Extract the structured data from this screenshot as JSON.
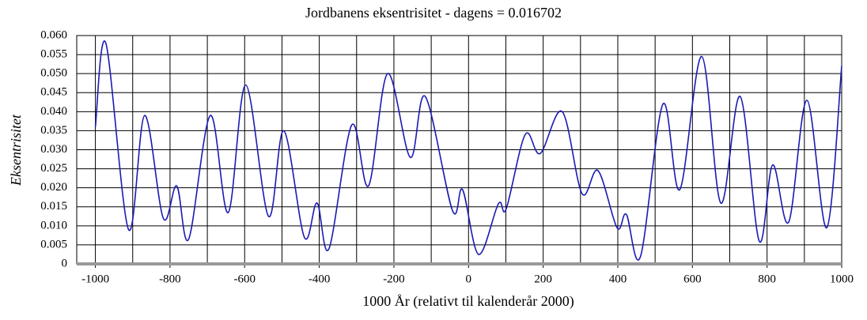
{
  "chart_data": {
    "type": "line",
    "title": "Jordbanens eksentrisitet - dagens = 0.016702",
    "xlabel": "1000 År (relativt til kalenderår 2000)",
    "ylabel": "Eksentrisitet",
    "x": [
      -1000,
      -972,
      -911,
      -868,
      -818,
      -782,
      -750,
      -692,
      -644,
      -597,
      -536,
      -495,
      -440,
      -406,
      -374,
      -313,
      -268,
      -217,
      -156,
      -116,
      -43,
      -16,
      27,
      80,
      101,
      152,
      192,
      251,
      304,
      347,
      398,
      423,
      461,
      521,
      566,
      625,
      676,
      728,
      779,
      815,
      858,
      907,
      960,
      1000
    ],
    "series": [
      {
        "name": "Eksentrisitet",
        "color": "#1a1ab4",
        "values": [
          0.036,
          0.058,
          0.009,
          0.039,
          0.012,
          0.0205,
          0.0065,
          0.039,
          0.0135,
          0.047,
          0.0125,
          0.035,
          0.007,
          0.016,
          0.004,
          0.0365,
          0.0205,
          0.05,
          0.028,
          0.044,
          0.014,
          0.0195,
          0.0025,
          0.0158,
          0.0145,
          0.034,
          0.029,
          0.04,
          0.0185,
          0.0245,
          0.0095,
          0.013,
          0.002,
          0.042,
          0.0195,
          0.0545,
          0.016,
          0.044,
          0.006,
          0.026,
          0.011,
          0.043,
          0.0095,
          0.052
        ]
      }
    ],
    "xlim": [
      -1050,
      1000
    ],
    "ylim": [
      0,
      0.06
    ],
    "xticks": [
      -1000,
      -800,
      -600,
      -400,
      -200,
      0,
      200,
      400,
      600,
      800,
      1000
    ],
    "xgrid": [
      -900,
      -700,
      -500,
      -300,
      -100,
      100,
      300,
      500,
      700,
      900
    ],
    "yticks": [
      0,
      {
        "value": 0.005,
        "label": "0.005"
      },
      {
        "value": 0.01,
        "label": "0.010"
      },
      {
        "value": 0.015,
        "label": "0.015"
      },
      {
        "value": 0.02,
        "label": "0.020"
      },
      {
        "value": 0.025,
        "label": "0.025"
      },
      {
        "value": 0.03,
        "label": "0.030"
      },
      {
        "value": 0.035,
        "label": "0.035"
      },
      {
        "value": 0.04,
        "label": "0.040"
      },
      {
        "value": 0.045,
        "label": "0.045"
      },
      {
        "value": 0.05,
        "label": "0.050"
      },
      {
        "value": 0.055,
        "label": "0.055"
      },
      {
        "value": 0.06,
        "label": "0.060"
      }
    ],
    "grid": true
  }
}
